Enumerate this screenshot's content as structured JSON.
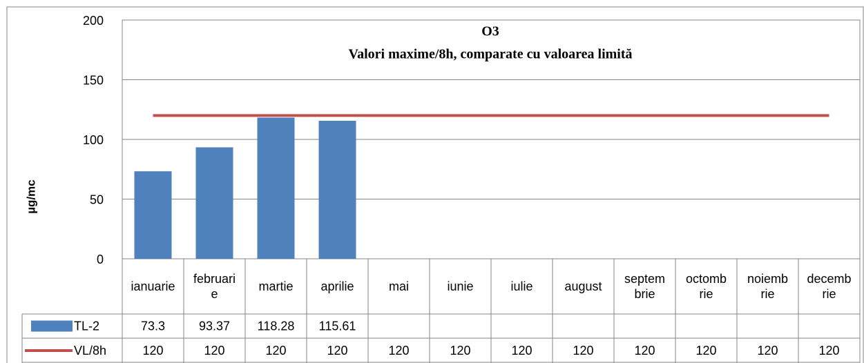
{
  "chart_data": {
    "type": "bar",
    "title": "O3",
    "subtitle": "Valori maxime/8h, comparate cu valoarea limită",
    "y_label": "µg/mc",
    "categories": [
      "ianuarie",
      "februarie",
      "martie",
      "aprilie",
      "mai",
      "iunie",
      "iulie",
      "august",
      "septembrie",
      "octombrie",
      "noiembrie",
      "decembrie"
    ],
    "series": [
      {
        "name": "TL-2",
        "type": "bar",
        "color": "#4f81bd",
        "values": [
          73.3,
          93.37,
          118.28,
          115.61,
          null,
          null,
          null,
          null,
          null,
          null,
          null,
          null
        ]
      },
      {
        "name": "VL/8h",
        "type": "line",
        "color": "#c0504d",
        "values": [
          120,
          120,
          120,
          120,
          120,
          120,
          120,
          120,
          120,
          120,
          120,
          120
        ]
      }
    ],
    "ylim": [
      0,
      200
    ],
    "yticks": [
      0,
      50,
      100,
      150,
      200
    ],
    "grid": true,
    "data_table": true
  }
}
